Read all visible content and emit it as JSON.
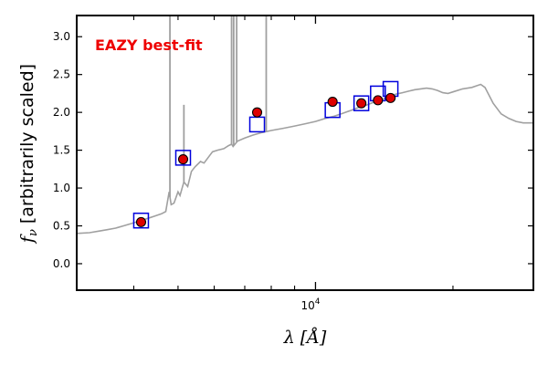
{
  "chart_data": {
    "type": "scatter",
    "xscale": "log",
    "xlim": [
      3000,
      30000
    ],
    "ylim": [
      -0.35,
      3.28
    ],
    "xlabel_symbol": "λ",
    "xlabel_unit": "[Å]",
    "ylabel_symbol": "f",
    "ylabel_sub": "ν",
    "ylabel_text": "[arbitrarily scaled]",
    "yticks": [
      "0.0",
      "0.5",
      "1.0",
      "1.5",
      "2.0",
      "2.5",
      "3.0"
    ],
    "ytick_values": [
      0.0,
      0.5,
      1.0,
      1.5,
      2.0,
      2.5,
      3.0
    ],
    "xtick_major_base": "10",
    "xtick_major_exp": "4",
    "xtick_major_value": 10000,
    "annotation": {
      "text": "EAZY best-fit",
      "color": "#ee0000"
    },
    "colors": {
      "template": "#a0a0a0",
      "observed": "#dd0000",
      "model_box": "#0000dd"
    },
    "grid": false,
    "series": [
      {
        "kind": "template-line",
        "points": [
          [
            3000,
            0.4
          ],
          [
            3200,
            0.41
          ],
          [
            3350,
            0.43
          ],
          [
            3500,
            0.45
          ],
          [
            3650,
            0.47
          ],
          [
            3800,
            0.5
          ],
          [
            3950,
            0.53
          ],
          [
            4100,
            0.56
          ],
          [
            4300,
            0.6
          ],
          [
            4450,
            0.63
          ],
          [
            4600,
            0.66
          ],
          [
            4700,
            0.69
          ],
          [
            4780,
            0.95
          ],
          [
            4830,
            0.78
          ],
          [
            4900,
            0.8
          ],
          [
            5000,
            0.95
          ],
          [
            5050,
            0.9
          ],
          [
            5150,
            1.08
          ],
          [
            5250,
            1.02
          ],
          [
            5350,
            1.22
          ],
          [
            5450,
            1.28
          ],
          [
            5600,
            1.35
          ],
          [
            5700,
            1.33
          ],
          [
            5850,
            1.42
          ],
          [
            5950,
            1.48
          ],
          [
            6100,
            1.5
          ],
          [
            6300,
            1.52
          ],
          [
            6450,
            1.56
          ],
          [
            6550,
            1.58
          ],
          [
            6600,
            1.55
          ],
          [
            6750,
            1.62
          ],
          [
            7000,
            1.66
          ],
          [
            7300,
            1.7
          ],
          [
            7600,
            1.73
          ],
          [
            8000,
            1.76
          ],
          [
            8500,
            1.79
          ],
          [
            9000,
            1.82
          ],
          [
            9500,
            1.85
          ],
          [
            10000,
            1.88
          ],
          [
            10500,
            1.92
          ],
          [
            11000,
            1.95
          ],
          [
            11500,
            1.99
          ],
          [
            12000,
            2.03
          ],
          [
            12500,
            2.07
          ],
          [
            13000,
            2.1
          ],
          [
            13500,
            2.14
          ],
          [
            14000,
            2.17
          ],
          [
            14500,
            2.21
          ],
          [
            15000,
            2.24
          ],
          [
            15500,
            2.26
          ],
          [
            16000,
            2.28
          ],
          [
            16500,
            2.3
          ],
          [
            17000,
            2.31
          ],
          [
            17500,
            2.32
          ],
          [
            18000,
            2.31
          ],
          [
            18500,
            2.29
          ],
          [
            19000,
            2.26
          ],
          [
            19500,
            2.25
          ],
          [
            20000,
            2.27
          ],
          [
            21000,
            2.31
          ],
          [
            22000,
            2.33
          ],
          [
            22500,
            2.35
          ],
          [
            23000,
            2.37
          ],
          [
            23500,
            2.33
          ],
          [
            24500,
            2.12
          ],
          [
            25500,
            1.98
          ],
          [
            26500,
            1.92
          ],
          [
            27500,
            1.88
          ],
          [
            28500,
            1.86
          ],
          [
            30000,
            1.86
          ]
        ],
        "lines": [
          {
            "x": 4800,
            "y": 3.28
          },
          {
            "x": 5150,
            "y": 2.1
          },
          {
            "x": 6550,
            "y": 3.28
          },
          {
            "x": 6620,
            "y": 3.28
          },
          {
            "x": 6720,
            "y": 3.28
          },
          {
            "x": 7800,
            "y": 3.28
          }
        ]
      },
      {
        "kind": "observed-points",
        "points": [
          [
            4150,
            0.55
          ],
          [
            5130,
            1.38
          ],
          [
            7450,
            2.0
          ],
          [
            10900,
            2.14
          ],
          [
            12600,
            2.12
          ],
          [
            13700,
            2.16
          ],
          [
            14600,
            2.19
          ]
        ]
      },
      {
        "kind": "model-boxes",
        "points": [
          [
            4150,
            0.57
          ],
          [
            5130,
            1.4
          ],
          [
            7450,
            1.84
          ],
          [
            10900,
            2.03
          ],
          [
            12600,
            2.12
          ],
          [
            13700,
            2.25
          ],
          [
            14600,
            2.31
          ]
        ]
      }
    ]
  }
}
